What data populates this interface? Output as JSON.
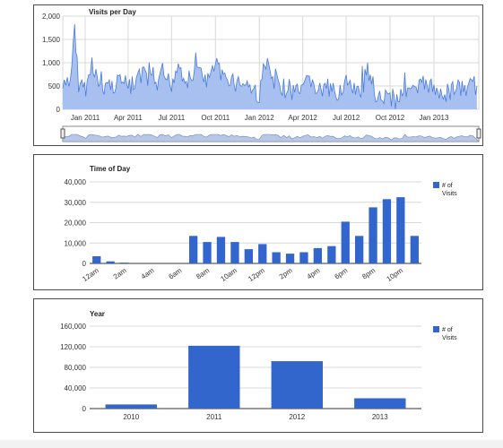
{
  "chart_data": [
    {
      "type": "area",
      "title": "Visits per Day",
      "xlabel": "",
      "ylabel": "",
      "ylim": [
        0,
        2000
      ],
      "yticks": [
        "0",
        "500",
        "1,000",
        "1,500",
        "2,000"
      ],
      "x_tick_labels": [
        "Jan 2011",
        "Apr 2011",
        "Jul 2011",
        "Oct 2011",
        "Jan 2012",
        "Apr 2012",
        "Jul 2012",
        "Oct 2012",
        "Jan 2013"
      ],
      "x_domain": [
        "2010-11-15",
        "2013-04-05"
      ],
      "grid": true,
      "range_selector": true,
      "series": [
        {
          "x": [
            "2010-11-15",
            "2010-12-01",
            "2010-12-10",
            "2010-12-15",
            "2010-12-25",
            "2011-01-05",
            "2011-01-15",
            "2011-02-01",
            "2011-02-15",
            "2011-03-01",
            "2011-03-15",
            "2011-04-01",
            "2011-04-15",
            "2011-05-01",
            "2011-05-15",
            "2011-06-01",
            "2011-06-15",
            "2011-07-01",
            "2011-07-15",
            "2011-08-01",
            "2011-08-15",
            "2011-09-01",
            "2011-09-15",
            "2011-10-01",
            "2011-10-15",
            "2011-11-01",
            "2011-11-15",
            "2011-12-01",
            "2011-12-15",
            "2012-01-01",
            "2012-01-15",
            "2012-02-01",
            "2012-02-15",
            "2012-03-01",
            "2012-03-15",
            "2012-04-01",
            "2012-04-15",
            "2012-05-01",
            "2012-05-15",
            "2012-06-01",
            "2012-06-15",
            "2012-07-01",
            "2012-07-15",
            "2012-08-01",
            "2012-08-15",
            "2012-09-01",
            "2012-09-15",
            "2012-10-01",
            "2012-10-15",
            "2012-11-01",
            "2012-11-15",
            "2012-12-01",
            "2012-12-15",
            "2013-01-01",
            "2013-01-15",
            "2013-02-01",
            "2013-02-15",
            "2013-03-01",
            "2013-03-15",
            "2013-04-01"
          ],
          "values": [
            450,
            550,
            1900,
            600,
            500,
            480,
            1050,
            450,
            550,
            500,
            700,
            480,
            520,
            750,
            600,
            500,
            700,
            550,
            1000,
            600,
            700,
            800,
            600,
            1000,
            650,
            700,
            550,
            600,
            450,
            300,
            1000,
            500,
            450,
            450,
            350,
            350,
            700,
            400,
            400,
            350,
            400,
            600,
            350,
            400,
            700,
            350,
            300,
            250,
            200,
            500,
            350,
            450,
            600,
            400,
            400,
            350,
            500,
            400,
            500,
            500
          ]
        }
      ]
    },
    {
      "type": "bar",
      "title": "Time of Day",
      "categories": [
        "12am",
        "1am",
        "2am",
        "3am",
        "4am",
        "5am",
        "6am",
        "7am",
        "8am",
        "9am",
        "10am",
        "11am",
        "12pm",
        "1pm",
        "2pm",
        "3pm",
        "4pm",
        "5pm",
        "6pm",
        "7pm",
        "8pm",
        "9pm",
        "10pm",
        "11pm"
      ],
      "x_tick_labels": [
        "12am",
        "2am",
        "4am",
        "6am",
        "8am",
        "10am",
        "12pm",
        "2pm",
        "4pm",
        "6pm",
        "8pm",
        "10pm"
      ],
      "values": [
        3500,
        1000,
        400,
        0,
        0,
        0,
        0,
        13500,
        10500,
        13000,
        10500,
        7000,
        9500,
        5500,
        4800,
        5500,
        7500,
        8500,
        20500,
        13500,
        27500,
        31500,
        32500,
        13500
      ],
      "ylim": [
        0,
        40000
      ],
      "yticks": [
        "0",
        "10,000",
        "20,000",
        "30,000",
        "40,000"
      ],
      "series_name": [
        "# of",
        "Visits"
      ],
      "legend": "right",
      "color": "#3366cc",
      "grid": true
    },
    {
      "type": "bar",
      "title": "Year",
      "categories": [
        "2010",
        "2011",
        "2012",
        "2013"
      ],
      "values": [
        8000,
        122000,
        92000,
        20000
      ],
      "ylim": [
        0,
        160000
      ],
      "yticks": [
        "0",
        "40,000",
        "80,000",
        "120,000",
        "160,000"
      ],
      "series_name": [
        "# of",
        "Visits"
      ],
      "legend": "right",
      "color": "#3366cc",
      "grid": true
    }
  ],
  "colors": {
    "area_fill": "#a7c0f0",
    "area_line": "#4a7bdb",
    "bar": "#3366cc",
    "grid": "#d8d8d8",
    "panel_border": "#4a4a4a",
    "navigator_fill": "#b8c8e4",
    "navigator_line": "#6d86b8"
  }
}
